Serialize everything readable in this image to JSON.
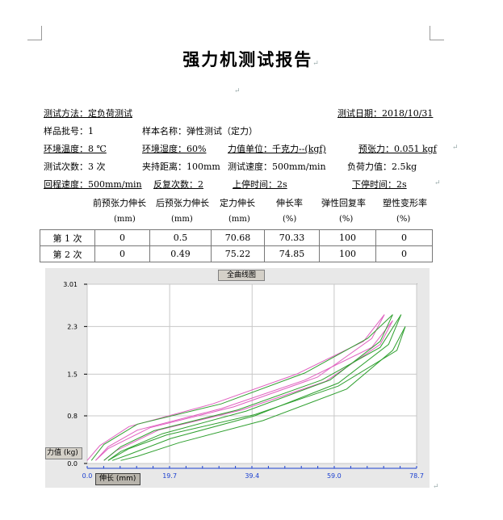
{
  "document": {
    "title": "强力机测试报告",
    "test_method_label": "测试方法：定负荷测试",
    "test_date_label": "测试日期：2018/10/31",
    "batch_label": "样品批号：1",
    "sample_name_label": "样本名称：弹性测试（定力）",
    "env_temp": "环境温度：8 ℃",
    "env_humidity": "环境湿度：60%",
    "force_unit": "力值单位：千克力--(kgf)",
    "pretension": "预张力：0.051 kgf",
    "test_count": "测试次数：3 次",
    "clamp_distance": "夹持距离：100mm",
    "test_speed": "测试速度：500mm/min",
    "load_force": "负荷力值：2.5kg",
    "return_speed": "回程速度：500mm/min",
    "repeat_count": "反复次数：2",
    "upper_stop": "上停时间：2s",
    "lower_stop": "下停时间：2s"
  },
  "table": {
    "headers": [
      "前预张力伸长",
      "后预张力伸长",
      "定力伸长",
      "伸长率",
      "弹性回复率",
      "塑性变形率"
    ],
    "units": [
      "(mm)",
      "(mm)",
      "(mm)",
      "(%)",
      "(%)",
      "(%)"
    ],
    "rows": [
      {
        "label": "第 1 次",
        "cells": [
          "0",
          "0.5",
          "70.68",
          "70.33",
          "100",
          "0"
        ]
      },
      {
        "label": "第 2 次",
        "cells": [
          "0",
          "0.49",
          "75.22",
          "74.85",
          "100",
          "0"
        ]
      }
    ]
  },
  "chart_data": {
    "type": "line",
    "title": "全曲线图",
    "xlabel": "伸长 (mm)",
    "ylabel": "力值 (kg)",
    "xlim": [
      0,
      78.7
    ],
    "ylim": [
      0,
      3.01
    ],
    "x_ticks": [
      "0.0",
      "19.7",
      "39.4",
      "59.0",
      "78.7"
    ],
    "y_ticks": [
      "0.0",
      "0.8",
      "1.5",
      "2.3",
      "3.01"
    ],
    "grid": true,
    "series": [
      {
        "color": "#e060c0",
        "loop": {
          "load": [
            [
              0,
              0.05
            ],
            [
              3,
              0.3
            ],
            [
              10,
              0.62
            ],
            [
              30,
              1.0
            ],
            [
              50,
              1.5
            ],
            [
              66,
              2.05
            ],
            [
              71,
              2.5
            ]
          ],
          "unload": [
            [
              71,
              2.5
            ],
            [
              68,
              2.1
            ],
            [
              55,
              1.45
            ],
            [
              35,
              0.95
            ],
            [
              15,
              0.6
            ],
            [
              5,
              0.25
            ],
            [
              2,
              0.05
            ]
          ]
        }
      },
      {
        "color": "#e060c0",
        "loop": {
          "load": [
            [
              2,
              0.05
            ],
            [
              5,
              0.28
            ],
            [
              12,
              0.56
            ],
            [
              32,
              0.92
            ],
            [
              52,
              1.4
            ],
            [
              68,
              1.95
            ],
            [
              73,
              2.4
            ]
          ],
          "unload": [
            [
              73,
              2.4
            ],
            [
              70,
              2.0
            ],
            [
              57,
              1.38
            ],
            [
              37,
              0.9
            ],
            [
              17,
              0.56
            ],
            [
              7,
              0.22
            ],
            [
              4,
              0.05
            ]
          ]
        }
      },
      {
        "color": "#30a030",
        "loop": {
          "load": [
            [
              1,
              0.05
            ],
            [
              4,
              0.32
            ],
            [
              12,
              0.66
            ],
            [
              32,
              1.0
            ],
            [
              52,
              1.52
            ],
            [
              67,
              2.1
            ],
            [
              73,
              2.5
            ]
          ],
          "unload": [
            [
              73,
              2.5
            ],
            [
              70,
              2.05
            ],
            [
              58,
              1.4
            ],
            [
              38,
              0.88
            ],
            [
              18,
              0.5
            ],
            [
              8,
              0.2
            ],
            [
              5,
              0.05
            ]
          ]
        }
      },
      {
        "color": "#30a030",
        "loop": {
          "load": [
            [
              4,
              0.05
            ],
            [
              8,
              0.28
            ],
            [
              16,
              0.55
            ],
            [
              36,
              0.9
            ],
            [
              56,
              1.4
            ],
            [
              70,
              1.95
            ],
            [
              75,
              2.5
            ]
          ],
          "unload": [
            [
              75,
              2.5
            ],
            [
              72,
              2.0
            ],
            [
              60,
              1.35
            ],
            [
              40,
              0.8
            ],
            [
              20,
              0.42
            ],
            [
              10,
              0.15
            ],
            [
              6,
              0.05
            ]
          ]
        }
      },
      {
        "color": "#30a030",
        "loop": {
          "load": [
            [
              5,
              0.05
            ],
            [
              10,
              0.25
            ],
            [
              19,
              0.48
            ],
            [
              40,
              0.82
            ],
            [
              60,
              1.3
            ],
            [
              74,
              1.9
            ],
            [
              76,
              2.3
            ]
          ],
          "unload": [
            [
              76,
              2.3
            ],
            [
              73,
              1.9
            ],
            [
              62,
              1.25
            ],
            [
              42,
              0.72
            ],
            [
              22,
              0.35
            ],
            [
              12,
              0.12
            ],
            [
              8,
              0.05
            ]
          ]
        }
      }
    ]
  }
}
